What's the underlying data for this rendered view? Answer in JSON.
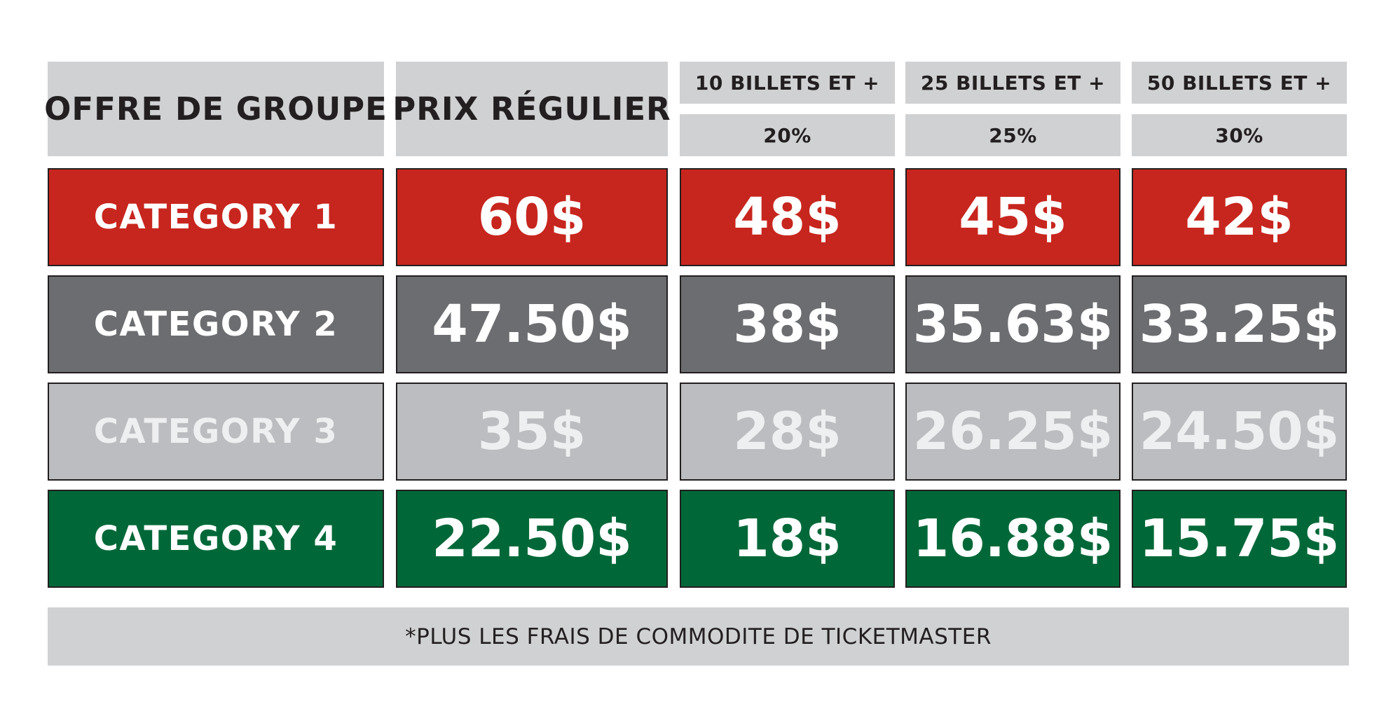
{
  "header": {
    "group_offer": "OFFRE DE GROUPE",
    "regular_price": "PRIX RÉGULIER",
    "tiers": [
      {
        "label": "10 BILLETS ET +",
        "discount": "20%"
      },
      {
        "label": "25 BILLETS ET +",
        "discount": "25%"
      },
      {
        "label": "50 BILLETS ET +",
        "discount": "30%"
      }
    ]
  },
  "rows": [
    {
      "category": "CATEGORY 1",
      "regular": "60$",
      "tier1": "48$",
      "tier2": "45$",
      "tier3": "42$",
      "color": "#c7261e"
    },
    {
      "category": "CATEGORY 2",
      "regular": "47.50$",
      "tier1": "38$",
      "tier2": "35.63$",
      "tier3": "33.25$",
      "color": "#6c6d70"
    },
    {
      "category": "CATEGORY 3",
      "regular": "35$",
      "tier1": "28$",
      "tier2": "26.25$",
      "tier3": "24.50$",
      "color": "#bcbdc0"
    },
    {
      "category": "CATEGORY 4",
      "regular": "22.50$",
      "tier1": "18$",
      "tier2": "16.88$",
      "tier3": "15.75$",
      "color": "#006838"
    }
  ],
  "footnote": "*PLUS LES FRAIS DE COMMODITE DE TICKETMASTER"
}
